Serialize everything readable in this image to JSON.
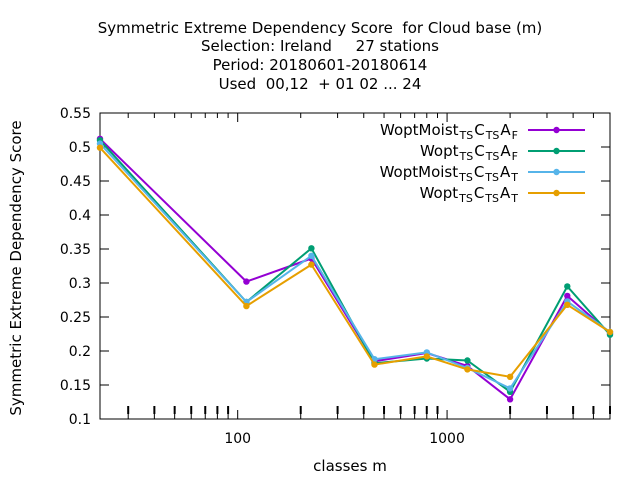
{
  "title_lines": [
    "Symmetric Extreme Dependency Score  for Cloud base (m)",
    "Selection: Ireland     27 stations",
    "Period: 20180601-20180614",
    "Used  00,12  + 01 02 ... 24"
  ],
  "chart_data": {
    "type": "line",
    "title": "Symmetric Extreme Dependency Score  for Cloud base (m)",
    "xlabel": "classes m",
    "ylabel": "Symmetric Extreme Dependency Score",
    "xscale": "log",
    "xlim": [
      22,
      6000
    ],
    "ylim": [
      0.1,
      0.55
    ],
    "x_tick_labels": [
      {
        "value": 100,
        "label": "100"
      },
      {
        "value": 1000,
        "label": "1000"
      }
    ],
    "y_tick_labels": [
      {
        "value": 0.1,
        "label": "0.1"
      },
      {
        "value": 0.15,
        "label": "0.15"
      },
      {
        "value": 0.2,
        "label": "0.2"
      },
      {
        "value": 0.25,
        "label": "0.25"
      },
      {
        "value": 0.3,
        "label": "0.3"
      },
      {
        "value": 0.35,
        "label": "0.35"
      },
      {
        "value": 0.4,
        "label": "0.4"
      },
      {
        "value": 0.45,
        "label": "0.45"
      },
      {
        "value": 0.5,
        "label": "0.5"
      },
      {
        "value": 0.55,
        "label": "0.55"
      }
    ],
    "grid": false,
    "legend_position": "top-right",
    "x": [
      22,
      110,
      225,
      450,
      800,
      1250,
      2000,
      3750,
      6000
    ],
    "series": [
      {
        "name_main": "WoptMoist",
        "name_sub1": "TS",
        "name_mid": "C",
        "name_sub2": "TS",
        "name_last": "A",
        "name_sub3": "F",
        "color": "#9400d3",
        "values": [
          0.512,
          0.302,
          0.336,
          0.185,
          0.197,
          0.178,
          0.129,
          0.281,
          0.226
        ]
      },
      {
        "name_main": "Wopt",
        "name_sub1": "TS",
        "name_mid": "C",
        "name_sub2": "TS",
        "name_last": "A",
        "name_sub3": "F",
        "color": "#009e73",
        "values": [
          0.51,
          0.272,
          0.351,
          0.182,
          0.189,
          0.186,
          0.14,
          0.295,
          0.224
        ]
      },
      {
        "name_main": "WoptMoist",
        "name_sub1": "TS",
        "name_mid": "C",
        "name_sub2": "TS",
        "name_last": "A",
        "name_sub3": "T",
        "color": "#56b4e9",
        "values": [
          0.505,
          0.272,
          0.34,
          0.188,
          0.198,
          0.175,
          0.145,
          0.273,
          0.228
        ]
      },
      {
        "name_main": "Wopt",
        "name_sub1": "TS",
        "name_mid": "C",
        "name_sub2": "TS",
        "name_last": "A",
        "name_sub3": "T",
        "color": "#e69f00",
        "values": [
          0.499,
          0.266,
          0.327,
          0.18,
          0.192,
          0.173,
          0.162,
          0.268,
          0.228
        ]
      }
    ]
  }
}
